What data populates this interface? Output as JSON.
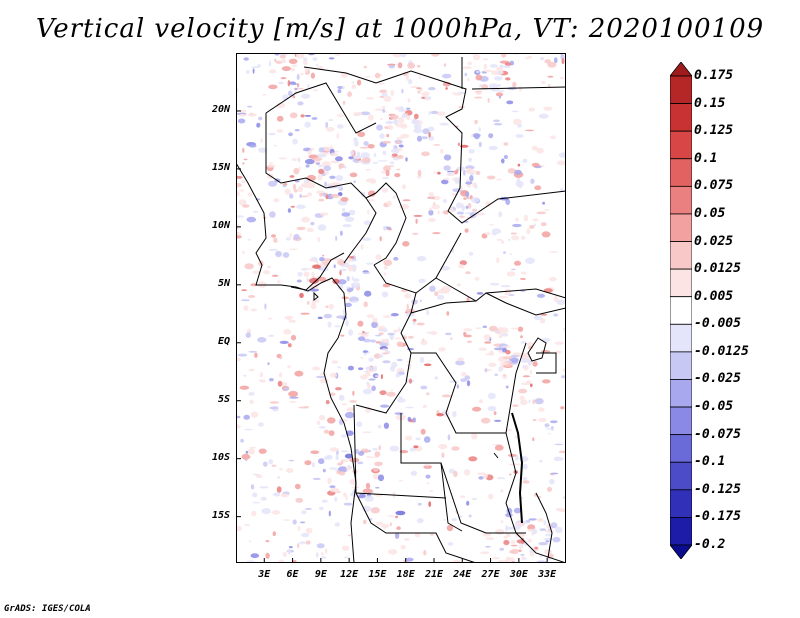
{
  "title": "Vertical velocity [m/s] at 1000hPa, VT: 2020100109",
  "credit": "GrADS: IGES/COLA",
  "map": {
    "lat_range": [
      -19,
      25
    ],
    "lon_range": [
      0,
      35
    ],
    "lat_ticks": [
      {
        "label": "20N",
        "lat": 20
      },
      {
        "label": "15N",
        "lat": 15
      },
      {
        "label": "10N",
        "lat": 10
      },
      {
        "label": "5N",
        "lat": 5
      },
      {
        "label": "EQ",
        "lat": 0
      },
      {
        "label": "5S",
        "lat": -5
      },
      {
        "label": "10S",
        "lat": -10
      },
      {
        "label": "15S",
        "lat": -15
      }
    ],
    "lon_ticks": [
      {
        "label": "3E",
        "lon": 3
      },
      {
        "label": "6E",
        "lon": 6
      },
      {
        "label": "9E",
        "lon": 9
      },
      {
        "label": "12E",
        "lon": 12
      },
      {
        "label": "15E",
        "lon": 15
      },
      {
        "label": "18E",
        "lon": 18
      },
      {
        "label": "21E",
        "lon": 21
      },
      {
        "label": "24E",
        "lon": 24
      },
      {
        "label": "27E",
        "lon": 27
      },
      {
        "label": "30E",
        "lon": 30
      },
      {
        "label": "33E",
        "lon": 33
      }
    ]
  },
  "colorbar": {
    "labels": [
      "0.175",
      "0.15",
      "0.125",
      "0.1",
      "0.075",
      "0.05",
      "0.025",
      "0.0125",
      "0.005",
      "-0.005",
      "-0.0125",
      "-0.025",
      "-0.05",
      "-0.075",
      "-0.1",
      "-0.125",
      "-0.175",
      "-0.2"
    ],
    "colors": [
      "#a01c1c",
      "#b52626",
      "#c83232",
      "#d84646",
      "#e26262",
      "#ea8080",
      "#f2a0a0",
      "#f8c8c8",
      "#fce4e4",
      "#ffffff",
      "#e4e4fa",
      "#c8c8f4",
      "#a8a8ee",
      "#8a8ae6",
      "#6a6ad8",
      "#4c4cc8",
      "#3030b8",
      "#1c1ca8",
      "#0c0c90"
    ]
  }
}
